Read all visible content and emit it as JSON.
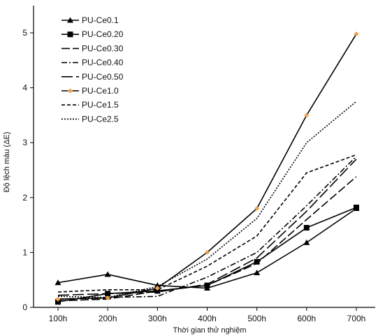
{
  "chart_data": {
    "type": "line",
    "categories": [
      "100h",
      "200h",
      "300h",
      "400h",
      "500h",
      "600h",
      "700h"
    ],
    "xlabel": "Thời gian thử nghiệm",
    "ylabel": "Độ lệch màu (ΔE)",
    "ylim": [
      0,
      5
    ],
    "yticks": [
      "0",
      "1",
      "2",
      "3",
      "4",
      "5"
    ],
    "grid": false,
    "legend_position": "top-left",
    "series": [
      {
        "name": "PU-Ce0.1",
        "values": [
          0.45,
          0.6,
          0.4,
          0.35,
          0.63,
          1.18,
          1.8
        ],
        "color": "#000000",
        "dash": "",
        "marker": "triangle"
      },
      {
        "name": "PU-Ce0.20",
        "values": [
          0.1,
          0.25,
          0.3,
          0.4,
          0.83,
          1.45,
          1.82
        ],
        "color": "#000000",
        "dash": "",
        "marker": "square"
      },
      {
        "name": "PU-Ce0.30",
        "values": [
          0.12,
          0.15,
          0.3,
          0.4,
          0.8,
          1.6,
          2.38
        ],
        "color": "#000000",
        "dash": "12,4",
        "marker": "none"
      },
      {
        "name": "PU-Ce0.40",
        "values": [
          0.15,
          0.18,
          0.2,
          0.55,
          1.0,
          1.85,
          2.75
        ],
        "color": "#000000",
        "dash": "8,3,2,3",
        "marker": "none"
      },
      {
        "name": "PU-Ce0.50",
        "values": [
          0.22,
          0.25,
          0.28,
          0.42,
          0.9,
          1.75,
          2.7
        ],
        "color": "#000000",
        "dash": "16,5",
        "marker": "none"
      },
      {
        "name": "PU-Ce1.0",
        "values": [
          0.15,
          0.17,
          0.35,
          1.0,
          1.8,
          3.5,
          4.98
        ],
        "color": "#000000",
        "dash": "",
        "marker": "diamond",
        "marker_color": "#f0a050"
      },
      {
        "name": "PU-Ce1.5",
        "values": [
          0.28,
          0.32,
          0.32,
          0.75,
          1.3,
          2.45,
          2.78
        ],
        "color": "#000000",
        "dash": "5,3",
        "marker": "none"
      },
      {
        "name": "PU-Ce2.5",
        "values": [
          0.2,
          0.18,
          0.38,
          0.88,
          1.62,
          3.0,
          3.75
        ],
        "color": "#000000",
        "dash": "2,2",
        "marker": "none"
      }
    ]
  }
}
